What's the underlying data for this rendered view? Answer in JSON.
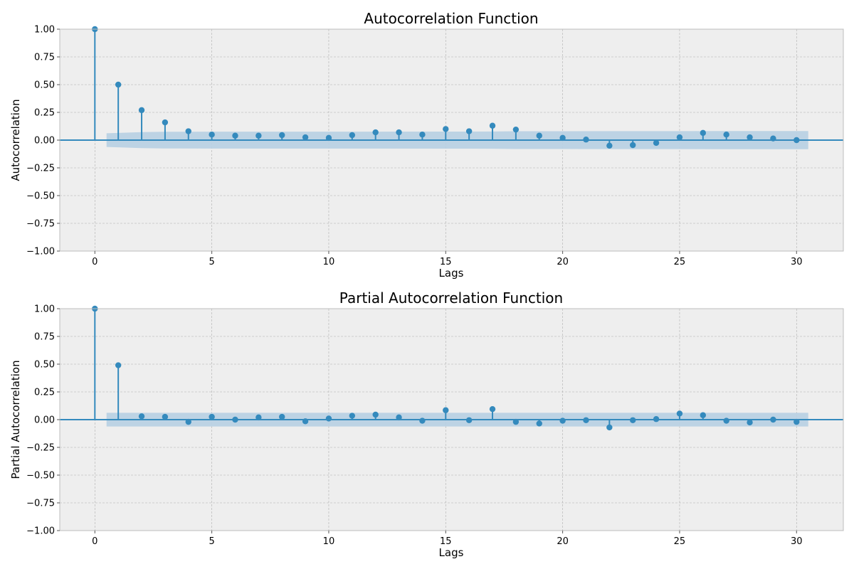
{
  "colors": {
    "background": "#ffffff",
    "plot_background": "#eeeeee",
    "grid": "#b0b0b0",
    "series": "#348abd",
    "confidence_band": "#b9d1e3",
    "frame": "#bcbcbc"
  },
  "chart_data": [
    {
      "type": "stem",
      "title": "Autocorrelation Function",
      "xlabel": "Lags",
      "ylabel": "Autocorrelation",
      "xlim": [
        -1.5,
        32
      ],
      "ylim": [
        -1.0,
        1.0
      ],
      "xticks": [
        0,
        5,
        10,
        15,
        20,
        25,
        30
      ],
      "xtick_labels": [
        "0",
        "5",
        "10",
        "15",
        "20",
        "25",
        "30"
      ],
      "yticks": [
        -1.0,
        -0.75,
        -0.5,
        -0.25,
        0.0,
        0.25,
        0.5,
        0.75,
        1.0
      ],
      "ytick_labels": [
        "−1.00",
        "−0.75",
        "−0.50",
        "−0.25",
        "0.00",
        "0.25",
        "0.50",
        "0.75",
        "1.00"
      ],
      "grid": true,
      "x": [
        0,
        1,
        2,
        3,
        4,
        5,
        6,
        7,
        8,
        9,
        10,
        11,
        12,
        13,
        14,
        15,
        16,
        17,
        18,
        19,
        20,
        21,
        22,
        23,
        24,
        25,
        26,
        27,
        28,
        29,
        30
      ],
      "values": [
        1.0,
        0.5,
        0.27,
        0.16,
        0.08,
        0.05,
        0.04,
        0.04,
        0.045,
        0.025,
        0.02,
        0.045,
        0.07,
        0.07,
        0.05,
        0.1,
        0.08,
        0.13,
        0.095,
        0.04,
        0.02,
        0.005,
        -0.05,
        -0.045,
        -0.025,
        0.025,
        0.065,
        0.05,
        0.025,
        0.015,
        0.0
      ],
      "confidence_band": {
        "x": [
          0.5,
          1,
          2,
          3,
          5,
          10,
          15,
          16,
          17,
          18,
          20,
          22,
          25,
          30,
          30.5
        ],
        "upper": [
          0.062,
          0.065,
          0.072,
          0.075,
          0.076,
          0.076,
          0.077,
          0.077,
          0.078,
          0.08,
          0.08,
          0.081,
          0.081,
          0.082,
          0.082
        ]
      }
    },
    {
      "type": "stem",
      "title": "Partial Autocorrelation Function",
      "xlabel": "Lags",
      "ylabel": "Partial Autocorrelation",
      "xlim": [
        -1.5,
        32
      ],
      "ylim": [
        -1.0,
        1.0
      ],
      "xticks": [
        0,
        5,
        10,
        15,
        20,
        25,
        30
      ],
      "xtick_labels": [
        "0",
        "5",
        "10",
        "15",
        "20",
        "25",
        "30"
      ],
      "yticks": [
        -1.0,
        -0.75,
        -0.5,
        -0.25,
        0.0,
        0.25,
        0.5,
        0.75,
        1.0
      ],
      "ytick_labels": [
        "−1.00",
        "−0.75",
        "−0.50",
        "−0.25",
        "0.00",
        "0.25",
        "0.50",
        "0.75",
        "1.00"
      ],
      "grid": true,
      "x": [
        0,
        1,
        2,
        3,
        4,
        5,
        6,
        7,
        8,
        9,
        10,
        11,
        12,
        13,
        14,
        15,
        16,
        17,
        18,
        19,
        20,
        21,
        22,
        23,
        24,
        25,
        26,
        27,
        28,
        29,
        30
      ],
      "values": [
        1.0,
        0.49,
        0.03,
        0.025,
        -0.02,
        0.025,
        0.0,
        0.02,
        0.025,
        -0.015,
        0.01,
        0.035,
        0.045,
        0.02,
        -0.01,
        0.085,
        -0.005,
        0.095,
        -0.02,
        -0.035,
        -0.01,
        -0.005,
        -0.07,
        -0.005,
        0.005,
        0.055,
        0.04,
        -0.01,
        -0.025,
        0.0,
        -0.02
      ],
      "confidence_band": {
        "x": [
          0.5,
          30.5
        ],
        "upper": [
          0.062,
          0.062
        ]
      }
    }
  ]
}
